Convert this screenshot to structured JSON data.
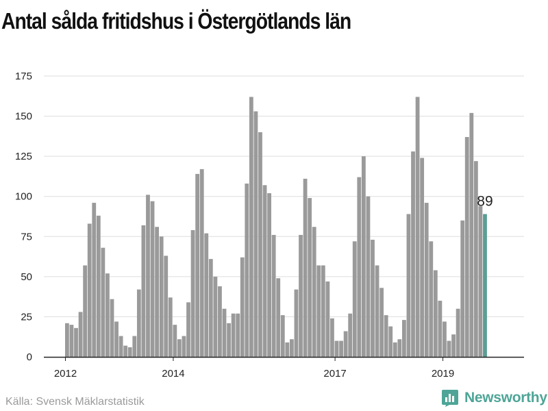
{
  "title": "Antal sålda fritidshus i Östergötlands län",
  "source": "Källa: Svensk Mäklarstatistik",
  "brand": {
    "name": "Newsworthy",
    "icon": "chart-bubble-icon",
    "color": "#4ea597"
  },
  "colors": {
    "bar": "#9a9a9a",
    "highlight": "#5a9e94",
    "grid": "#dddddd",
    "axis": "#222222"
  },
  "chart_data": {
    "type": "bar",
    "title": "Antal sålda fritidshus i Östergötlands län",
    "xlabel": "",
    "ylabel": "",
    "ylim": [
      0,
      175
    ],
    "yticks": [
      0,
      25,
      50,
      75,
      100,
      125,
      150,
      175
    ],
    "grid": true,
    "x_start": "2012-01",
    "frequency": "monthly",
    "x_tick_labels": [
      {
        "label": "2012",
        "month": "2012-01"
      },
      {
        "label": "2014",
        "month": "2014-01"
      },
      {
        "label": "2017",
        "month": "2017-01"
      },
      {
        "label": "2019",
        "month": "2019-01"
      }
    ],
    "values": [
      21,
      20,
      18,
      28,
      57,
      83,
      96,
      88,
      68,
      52,
      36,
      22,
      13,
      7,
      6,
      13,
      42,
      82,
      101,
      97,
      81,
      75,
      63,
      37,
      20,
      11,
      13,
      34,
      79,
      114,
      117,
      77,
      61,
      50,
      44,
      30,
      21,
      27,
      27,
      62,
      108,
      162,
      153,
      140,
      107,
      102,
      76,
      49,
      26,
      9,
      11,
      42,
      76,
      111,
      99,
      81,
      57,
      57,
      47,
      24,
      10,
      10,
      16,
      27,
      72,
      112,
      125,
      100,
      73,
      57,
      43,
      26,
      19,
      9,
      11,
      23,
      89,
      128,
      162,
      124,
      96,
      72,
      54,
      35,
      22,
      10,
      14,
      30,
      85,
      137,
      152,
      122,
      94,
      89
    ],
    "highlight": {
      "month": "2019-10",
      "value": 89,
      "label": "89"
    }
  }
}
